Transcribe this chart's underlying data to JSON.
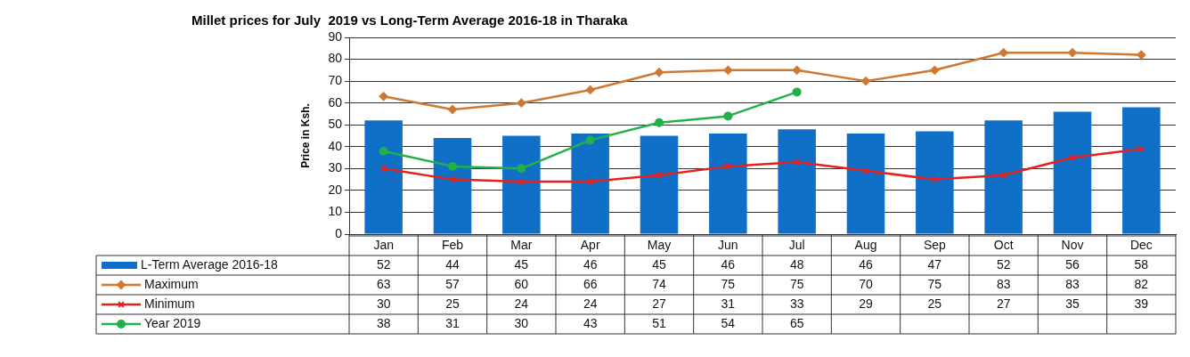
{
  "chart_data": {
    "type": "bar",
    "title": "Millet prices for July  2019 vs Long-Term Average 2016-18 in Tharaka",
    "ylabel": "Price in Ksh.",
    "categories": [
      "Jan",
      "Feb",
      "Mar",
      "Apr",
      "May",
      "Jun",
      "Jul",
      "Aug",
      "Sep",
      "Oct",
      "Nov",
      "Dec"
    ],
    "series": [
      {
        "name": "L-Term Average 2016-18",
        "color": "#1070c8",
        "values": [
          52,
          44,
          45,
          46,
          45,
          46,
          48,
          46,
          47,
          52,
          56,
          58
        ]
      },
      {
        "name": "Maximum",
        "type": "line",
        "color": "#d07830",
        "marker": "diamond",
        "values": [
          63,
          57,
          60,
          66,
          74,
          75,
          75,
          70,
          75,
          83,
          83,
          82
        ]
      },
      {
        "name": "Minimum",
        "type": "line",
        "color": "#e8201c",
        "marker": "cross",
        "values": [
          30,
          25,
          24,
          24,
          27,
          31,
          33,
          29,
          25,
          27,
          35,
          39
        ]
      },
      {
        "name": "Year 2019",
        "type": "line",
        "color": "#22b04a",
        "marker": "circle",
        "values": [
          38,
          31,
          30,
          43,
          51,
          54,
          65,
          null,
          null,
          null,
          null,
          null
        ]
      }
    ],
    "ylim": [
      0,
      90
    ],
    "yticks": [
      0,
      10,
      20,
      30,
      40,
      50,
      60,
      70,
      80,
      90
    ],
    "grid": "y",
    "legend": "bottom",
    "data_labels": true
  }
}
